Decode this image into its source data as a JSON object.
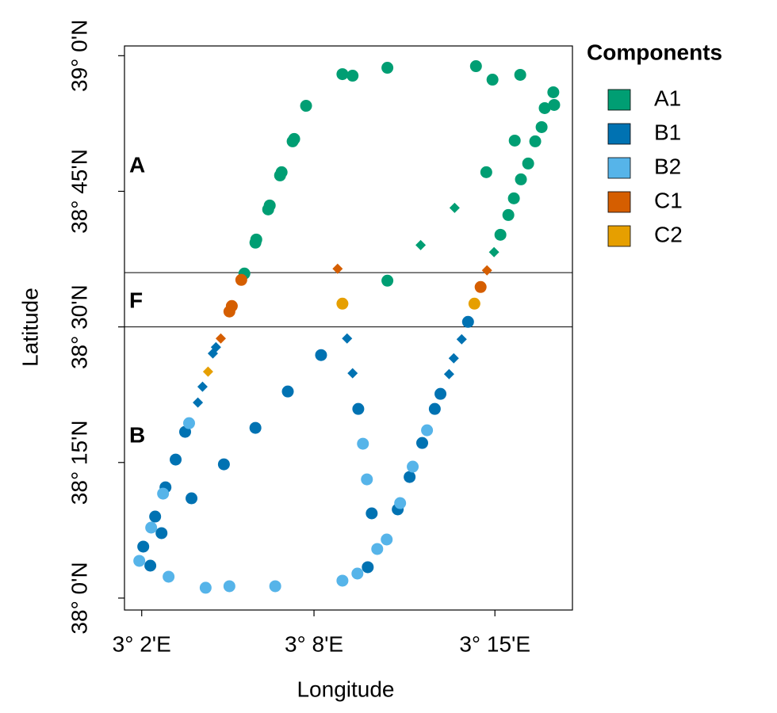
{
  "chart_data": {
    "type": "scatter",
    "xlabel": "Longitude",
    "ylabel": "Latitude",
    "xlim": [
      3.03,
      3.29
    ],
    "ylim": [
      37.978,
      39.018
    ],
    "xticks": [
      {
        "value": 3.04,
        "label": "3° 2'E"
      },
      {
        "value": 3.14,
        "label": "3° 8'E"
      },
      {
        "value": 3.245,
        "label": "3° 15'E"
      }
    ],
    "yticks": [
      {
        "value": 38,
        "label": "38° 0'N"
      },
      {
        "value": 38.25,
        "label": "38° 15'N"
      },
      {
        "value": 38.5,
        "label": "38° 30'N"
      },
      {
        "value": 38.75,
        "label": "38° 45'N"
      },
      {
        "value": 39,
        "label": "39° 0'N"
      }
    ],
    "hlines": [
      38.5,
      38.6
    ],
    "regions": [
      "A",
      "F",
      "B"
    ],
    "legend_title": "Components",
    "legend_position": "right",
    "series": [
      {
        "name": "A1",
        "color": "#009e73",
        "x": [
          3.1565,
          3.1624,
          3.1826,
          3.234,
          3.2436,
          3.2597,
          3.2789,
          3.2794,
          3.2739,
          3.1354,
          3.1285,
          3.1276,
          3.1212,
          3.1203,
          3.1143,
          3.1134,
          3.1065,
          3.106,
          3.0996,
          3.1826,
          3.24,
          3.2565,
          3.2721,
          3.2684,
          3.2643,
          3.2601,
          3.256,
          3.2528,
          3.2482,
          3.2019,
          3.2216,
          3.2445
        ],
        "values": [
          38.966,
          38.9632,
          38.9778,
          38.9807,
          38.9559,
          38.9647,
          38.9326,
          38.9092,
          38.9034,
          38.9077,
          38.8465,
          38.8421,
          38.7852,
          38.7793,
          38.7239,
          38.7166,
          38.6611,
          38.6553,
          38.5984,
          38.5852,
          38.7852,
          38.8435,
          38.8683,
          38.8421,
          38.8012,
          38.772,
          38.737,
          38.7063,
          38.6699,
          38.6509,
          38.7195,
          38.6378
        ],
        "markers": [
          "circle",
          "circle",
          "circle",
          "circle",
          "circle",
          "circle",
          "circle",
          "circle",
          "circle",
          "circle",
          "circle",
          "circle",
          "circle",
          "circle",
          "circle",
          "circle",
          "circle",
          "circle",
          "circle",
          "circle",
          "circle",
          "circle",
          "circle",
          "circle",
          "circle",
          "circle",
          "circle",
          "circle",
          "circle",
          "diamond",
          "diamond",
          "diamond"
        ]
      },
      {
        "name": "B1",
        "color": "#0072b2",
        "x": [
          3.2294,
          3.1441,
          3.1248,
          3.1657,
          3.106,
          3.0652,
          3.2101,
          3.2134,
          3.2028,
          3.0597,
          3.0877,
          3.1955,
          3.0538,
          3.0689,
          3.0478,
          3.1735,
          3.1886,
          3.0515,
          3.0409,
          3.045,
          3.1712,
          3.0831,
          3.0813,
          3.1592,
          3.1624,
          3.2257,
          3.2211,
          3.2184,
          3.0753,
          3.0726
        ],
        "values": [
          38.5093,
          38.448,
          38.3809,
          38.3488,
          38.3138,
          38.3065,
          38.3488,
          38.3765,
          38.286,
          38.2554,
          38.2466,
          38.2233,
          38.2043,
          38.1839,
          38.1503,
          38.1562,
          38.1635,
          38.1197,
          38.0949,
          38.0598,
          38.0569,
          38.4626,
          38.451,
          38.4787,
          38.4145,
          38.4772,
          38.4422,
          38.413,
          38.3897,
          38.3605
        ],
        "markers": [
          "circle",
          "circle",
          "circle",
          "circle",
          "circle",
          "circle",
          "circle",
          "circle",
          "circle",
          "circle",
          "circle",
          "circle",
          "circle",
          "circle",
          "circle",
          "circle",
          "circle",
          "circle",
          "circle",
          "circle",
          "circle",
          "diamond",
          "diamond",
          "diamond",
          "diamond",
          "diamond",
          "diamond",
          "diamond",
          "diamond",
          "diamond"
        ]
      },
      {
        "name": "B2",
        "color": "#56b4e9",
        "x": [
          3.0675,
          3.2056,
          3.1684,
          3.0524,
          3.1707,
          3.1973,
          3.19,
          3.0455,
          3.1822,
          3.1767,
          3.0386,
          3.0556,
          3.1652,
          3.1565,
          3.0771,
          3.0909,
          3.1175
        ],
        "values": [
          38.3225,
          38.3094,
          38.2846,
          38.1926,
          38.2189,
          38.2423,
          38.1751,
          38.1299,
          38.108,
          38.0905,
          38.0686,
          38.0394,
          38.0452,
          38.0321,
          38.019,
          38.0219,
          38.0219
        ],
        "markers": [
          "circle",
          "circle",
          "circle",
          "circle",
          "circle",
          "circle",
          "circle",
          "circle",
          "circle",
          "circle",
          "circle",
          "circle",
          "circle",
          "circle",
          "circle",
          "circle",
          "circle"
        ]
      },
      {
        "name": "C1",
        "color": "#d55e00",
        "x": [
          3.0978,
          3.0923,
          3.0909,
          3.2367,
          3.1537,
          3.2404,
          3.0859
        ],
        "values": [
          38.5867,
          38.5385,
          38.5283,
          38.5735,
          38.6071,
          38.6042,
          38.4787
        ],
        "markers": [
          "circle",
          "circle",
          "circle",
          "circle",
          "diamond",
          "diamond",
          "diamond"
        ]
      },
      {
        "name": "C2",
        "color": "#e69f00",
        "x": [
          3.1565,
          3.2331,
          3.0785
        ],
        "values": [
          38.5429,
          38.5429,
          38.4174
        ],
        "markers": [
          "circle",
          "circle",
          "diamond"
        ]
      }
    ]
  }
}
